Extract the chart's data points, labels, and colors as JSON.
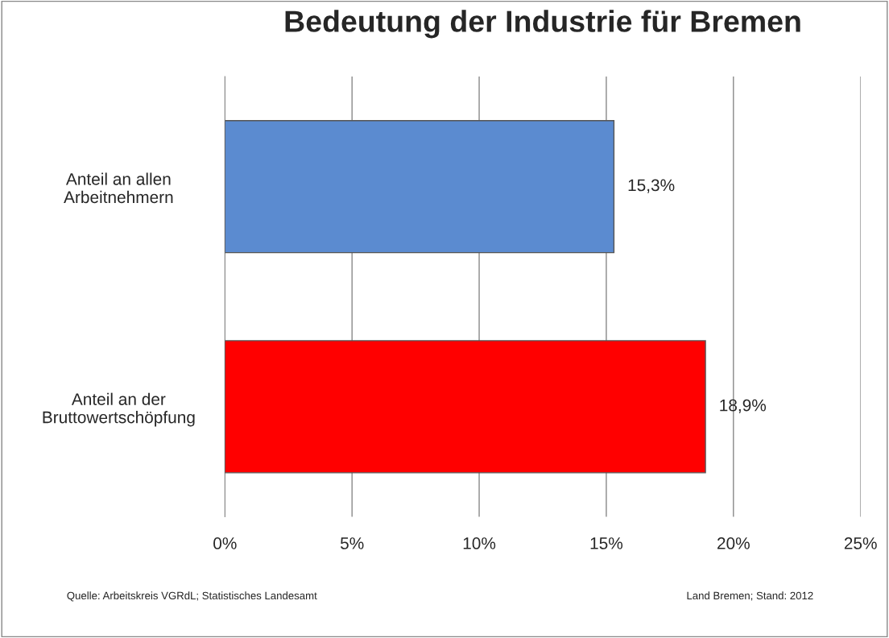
{
  "chart_data": {
    "type": "bar",
    "orientation": "horizontal",
    "title": "Bedeutung der Industrie für Bremen",
    "categories": [
      "Anteil an allen\nArbeitnehmern",
      "Anteil an der\nBruttowertschöpfung"
    ],
    "values": [
      15.3,
      18.9
    ],
    "colors": [
      "#5b8bd0",
      "#ff0000"
    ],
    "value_labels": [
      "15,3%",
      "18,9%"
    ],
    "xlim": [
      0,
      25
    ],
    "xticks": [
      {
        "value": 0,
        "label": "0%"
      },
      {
        "value": 5,
        "label": "5%"
      },
      {
        "value": 10,
        "label": "10%"
      },
      {
        "value": 15,
        "label": "15%"
      },
      {
        "value": 20,
        "label": "20%"
      },
      {
        "value": 25,
        "label": "25%"
      }
    ],
    "grid": "x",
    "annotations": [
      "Quelle: Arbeitskreis VGRdL; Statistisches Landesamt",
      "Land Bremen; Stand: 2012"
    ]
  }
}
